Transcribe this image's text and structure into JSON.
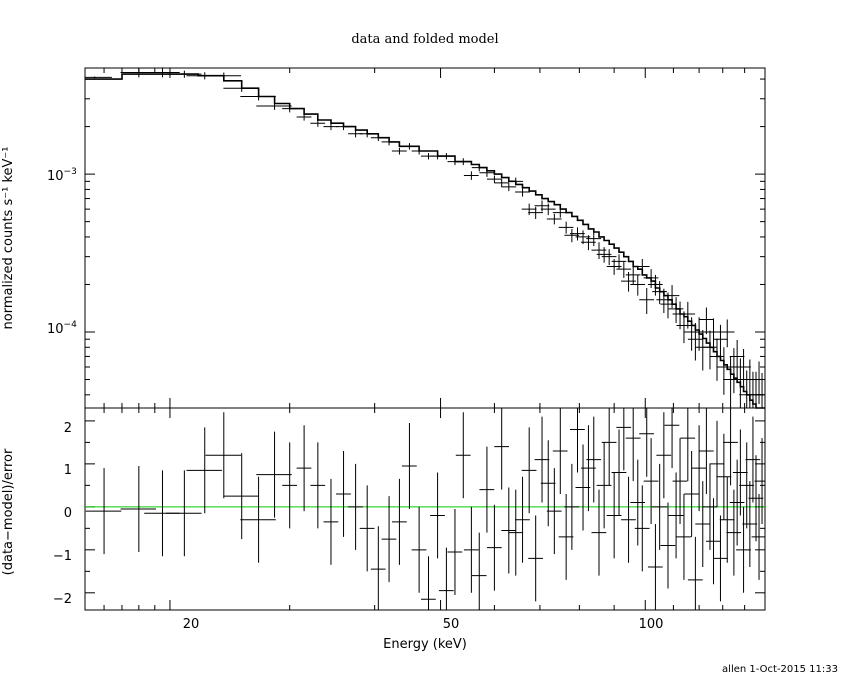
{
  "footer": "allen 1-Oct-2015 11:33",
  "chart_data": [
    {
      "type": "line",
      "panel": "top",
      "title": "data and folded model",
      "xlabel": "",
      "ylabel": "normalized counts s⁻¹ keV⁻¹",
      "xscale": "log",
      "yscale": "log",
      "xlim": [
        15,
        150
      ],
      "ylim": [
        3.3e-05,
        0.0047
      ],
      "yticks": [
        {
          "value": 0.001,
          "base": "10",
          "exp": "−3"
        },
        {
          "value": 0.0001,
          "base": "10",
          "exp": "−4"
        }
      ],
      "data": {
        "x": [
          15.5,
          18,
          19.5,
          21,
          22.5,
          24,
          25.5,
          27,
          28.5,
          30,
          31.5,
          33,
          34.5,
          36,
          37.5,
          39,
          40.5,
          42,
          43.5,
          45,
          46.5,
          48,
          49.5,
          51,
          52.5,
          54,
          55.5,
          57,
          58.5,
          60,
          61.5,
          63,
          64.5,
          66,
          67.5,
          69,
          70.5,
          72,
          73.5,
          75,
          76.5,
          78,
          79.5,
          81,
          82.5,
          84,
          85.5,
          87,
          88.5,
          90,
          91.5,
          93,
          94.5,
          96,
          97.5,
          99,
          100.5,
          102,
          103.5,
          105,
          106.5,
          108,
          109.5,
          111,
          112.5,
          114,
          115.5,
          117,
          118.5,
          120,
          121.5,
          123,
          124.5,
          126,
          127.5,
          129,
          130.5,
          132,
          133.5,
          135,
          136.5,
          138,
          139.5,
          141,
          142.5,
          144,
          145.5,
          147,
          148.5
        ],
        "y": [
          0.0041,
          0.0044,
          0.0044,
          0.0043,
          0.0042,
          0.0042,
          0.0035,
          0.0031,
          0.0027,
          0.0026,
          0.0023,
          0.0021,
          0.002,
          0.002,
          0.0018,
          0.0018,
          0.0017,
          0.0016,
          0.0014,
          0.0015,
          0.0014,
          0.0013,
          0.0013,
          0.0013,
          0.0012,
          0.0012,
          0.00098,
          0.0011,
          0.00102,
          0.00093,
          0.00088,
          0.00083,
          0.0009,
          0.00077,
          0.0006,
          0.00057,
          0.00063,
          0.0006,
          0.00052,
          0.00057,
          0.00046,
          0.00041,
          0.00042,
          0.0004,
          0.00037,
          0.00039,
          0.00033,
          0.00031,
          0.0003,
          0.00026,
          0.00028,
          0.00025,
          0.00021,
          0.00023,
          0.0002,
          0.00026,
          0.00016,
          0.00022,
          0.0002,
          0.00018,
          0.00016,
          0.00015,
          0.00017,
          0.00014,
          0.00013,
          0.00011,
          0.00013,
          0.0001,
          9e-05,
          0.0001,
          8e-05,
          0.00012,
          8e-05,
          0.0001,
          7e-05,
          9e-05,
          6e-05,
          0.0001,
          5e-05,
          6e-05,
          7e-05,
          5e-05,
          6e-05,
          4e-05,
          5e-05,
          4e-05,
          4e-05,
          5e-05,
          4e-05
        ],
        "err": [
          5e-05,
          0.0003,
          0.0003,
          0.00022,
          0.00022,
          0.0002,
          0.00018,
          0.00017,
          0.00015,
          0.00014,
          0.00012,
          0.00011,
          0.0001,
          0.0001,
          9e-05,
          9e-05,
          8e-05,
          8e-05,
          7e-05,
          7e-05,
          7e-05,
          6e-05,
          6e-05,
          6e-05,
          6e-05,
          6e-05,
          6e-05,
          6e-05,
          6e-05,
          5e-05,
          5e-05,
          5e-05,
          5e-05,
          5e-05,
          5e-05,
          5e-05,
          5e-05,
          5e-05,
          4e-05,
          4e-05,
          4e-05,
          4e-05,
          4e-05,
          4e-05,
          4e-05,
          4e-05,
          4e-05,
          3.5e-05,
          3.5e-05,
          3e-05,
          3e-05,
          3e-05,
          3e-05,
          3e-05,
          3e-05,
          3e-05,
          3e-05,
          3e-05,
          3e-05,
          3e-05,
          2.8e-05,
          2.8e-05,
          2.8e-05,
          2.6e-05,
          2.6e-05,
          2.5e-05,
          2.5e-05,
          2.4e-05,
          2.4e-05,
          2.4e-05,
          2.3e-05,
          2.3e-05,
          2.2e-05,
          2.2e-05,
          2.1e-05,
          2.1e-05,
          2e-05,
          2e-05,
          2e-05,
          1.9e-05,
          1.9e-05,
          1.8e-05,
          1.8e-05,
          1.7e-05,
          1.7e-05,
          1.6e-05,
          1.6e-05,
          1.5e-05,
          1.5e-05
        ]
      },
      "model": {
        "x": [
          15,
          17,
          19.5,
          22,
          24,
          25.5,
          27,
          28.5,
          30,
          31.5,
          33,
          34.5,
          36,
          37.5,
          39,
          40.5,
          42,
          43.5,
          45,
          46.5,
          48,
          49.5,
          51,
          52.5,
          54,
          55.5,
          57,
          58.5,
          60,
          61.5,
          63,
          64.5,
          66,
          67.5,
          69,
          70.5,
          72,
          73.5,
          75,
          76.5,
          78,
          79.5,
          81,
          82.5,
          84,
          85.5,
          87,
          88.5,
          90,
          91.5,
          93,
          94.5,
          96,
          97.5,
          99,
          100.5,
          102,
          103.5,
          105,
          106.5,
          108,
          109.5,
          111,
          112.5,
          114,
          115.5,
          117,
          118.5,
          120,
          121.5,
          123,
          124.5,
          126,
          127.5,
          129,
          130.5,
          132,
          133.5,
          135,
          136.5,
          138,
          139.5,
          141,
          142.5,
          144,
          145.5,
          147,
          148.5,
          150
        ],
        "y": [
          0.004,
          0.0043,
          0.0043,
          0.0042,
          0.0039,
          0.0035,
          0.0031,
          0.0028,
          0.0026,
          0.0024,
          0.0022,
          0.0021,
          0.002,
          0.0019,
          0.0018,
          0.0017,
          0.0016,
          0.0015,
          0.0015,
          0.0014,
          0.0014,
          0.0013,
          0.0013,
          0.0012,
          0.0012,
          0.00115,
          0.0011,
          0.00105,
          0.001,
          0.00095,
          0.0009,
          0.00086,
          0.00082,
          0.00078,
          0.00074,
          0.0007,
          0.00067,
          0.00064,
          0.0006,
          0.00057,
          0.00054,
          0.00051,
          0.00048,
          0.00045,
          0.00043,
          0.0004,
          0.00038,
          0.00036,
          0.00034,
          0.00032,
          0.0003,
          0.00028,
          0.00026,
          0.00025,
          0.00023,
          0.00022,
          0.00021,
          0.00019,
          0.00018,
          0.00017,
          0.00016,
          0.00015,
          0.00014,
          0.00013,
          0.000125,
          0.000117,
          0.00011,
          0.000103,
          9.7e-05,
          9.1e-05,
          8.5e-05,
          8e-05,
          7.5e-05,
          7e-05,
          6.6e-05,
          6.2e-05,
          5.8e-05,
          5.4e-05,
          5.1e-05,
          4.8e-05,
          4.5e-05,
          4.2e-05,
          4e-05,
          3.7e-05,
          3.5e-05,
          3.3e-05,
          3.1e-05,
          3e-05,
          3e-05
        ]
      }
    },
    {
      "type": "scatter",
      "panel": "bottom",
      "title": "",
      "xlabel": "Energy (keV)",
      "ylabel": "(data−model)/error",
      "xscale": "log",
      "xlim": [
        15,
        150
      ],
      "ylim": [
        -2.4,
        2.3
      ],
      "xticks": [
        {
          "value": 20,
          "label": "20"
        },
        {
          "value": 50,
          "label": "50"
        },
        {
          "value": 100,
          "label": "100"
        }
      ],
      "yticks": [
        {
          "value": 2,
          "label": "2"
        },
        {
          "value": 1,
          "label": "1"
        },
        {
          "value": 0,
          "label": "0"
        },
        {
          "value": -1,
          "label": "−1"
        },
        {
          "value": -2,
          "label": "−2"
        }
      ],
      "reference_line": {
        "value": 0,
        "color": "#00cc00"
      },
      "data": {
        "x": [
          16,
          18,
          19.5,
          21,
          22.5,
          24,
          25.5,
          27,
          28.5,
          30,
          31.5,
          33,
          34.5,
          36,
          37.5,
          39,
          40.5,
          42,
          43.5,
          45,
          46.5,
          48,
          49.5,
          51,
          52.5,
          54,
          55.5,
          57,
          58.5,
          60,
          61.5,
          63,
          64.5,
          66,
          67.5,
          69,
          70.5,
          72,
          73.5,
          75,
          76.5,
          78,
          79.5,
          81,
          82.5,
          84,
          85.5,
          87,
          88.5,
          90,
          91.5,
          93,
          94.5,
          96,
          97.5,
          99,
          100.5,
          102,
          103.5,
          105,
          106.5,
          108,
          109.5,
          111,
          112.5,
          114,
          115.5,
          117,
          118.5,
          120,
          121.5,
          123,
          124.5,
          126,
          127.5,
          129,
          130.5,
          132,
          133.5,
          135,
          136.5,
          138,
          139.5,
          141,
          142.5,
          144,
          145.5,
          147,
          148.5
        ],
        "y": [
          -0.1,
          -0.05,
          -0.15,
          -0.15,
          0.85,
          1.2,
          0.25,
          -0.3,
          0.75,
          0.5,
          0.9,
          0.5,
          -0.35,
          0.3,
          0.0,
          -0.5,
          -1.45,
          -0.75,
          -0.35,
          0.95,
          -1.0,
          -2.15,
          -0.2,
          -1.95,
          -1.05,
          1.2,
          -1.0,
          -1.6,
          0.4,
          -0.95,
          1.4,
          -0.55,
          -0.6,
          -0.3,
          0.85,
          -1.2,
          1.1,
          0.55,
          -0.1,
          1.3,
          -0.7,
          0.0,
          1.8,
          0.45,
          0.9,
          1.1,
          -0.6,
          0.5,
          1.5,
          -0.2,
          0.8,
          1.85,
          -0.3,
          1.6,
          0.1,
          -0.5,
          1.7,
          0.6,
          -1.4,
          0.0,
          1.2,
          -0.9,
          1.9,
          -0.2,
          0.6,
          -0.7,
          1.6,
          0.3,
          -1.7,
          0.9,
          -0.4,
          1.3,
          0.0,
          -0.8,
          1.0,
          -1.2,
          0.7,
          -0.3,
          1.5,
          -0.6,
          0.1,
          0.8,
          -1.0,
          0.5,
          -0.4,
          1.1,
          0.2,
          -0.7,
          0.6
        ],
        "err": [
          1.0,
          1.0,
          1.0,
          1.0,
          1.0,
          1.0,
          1.0,
          1.0,
          1.0,
          1.0,
          1.0,
          1.0,
          1.0,
          1.0,
          1.0,
          1.0,
          1.0,
          1.0,
          1.0,
          1.0,
          1.0,
          1.0,
          1.0,
          1.0,
          1.0,
          1.0,
          1.0,
          1.0,
          1.0,
          1.0,
          1.0,
          1.0,
          1.0,
          1.0,
          1.0,
          1.0,
          1.0,
          1.0,
          1.0,
          1.0,
          1.0,
          1.0,
          1.0,
          1.0,
          1.0,
          1.0,
          1.0,
          1.0,
          1.0,
          1.0,
          1.0,
          1.0,
          1.0,
          1.0,
          1.0,
          1.0,
          1.0,
          1.0,
          1.0,
          1.0,
          1.0,
          1.0,
          1.0,
          1.0,
          1.0,
          1.0,
          1.0,
          1.0,
          1.0,
          1.0,
          1.0,
          1.0,
          1.0,
          1.0,
          1.0,
          1.0,
          1.0,
          1.0,
          1.0,
          1.0,
          1.0,
          1.0,
          1.0,
          1.0,
          1.0,
          1.0,
          1.0,
          1.0,
          1.0
        ]
      }
    }
  ]
}
